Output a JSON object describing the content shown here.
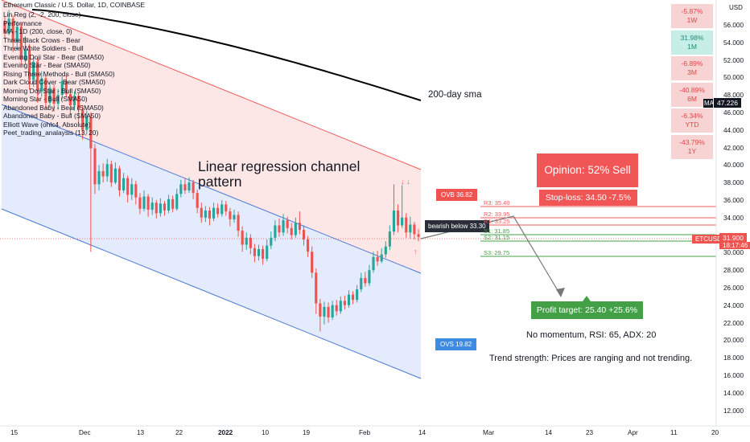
{
  "header": {
    "title": "Ethereum Classic / U.S. Dollar, 1D, COINBASE",
    "indicators": [
      "Lin Reg (2, -2, 200, close)",
      "Performance",
      "MA - 1D (200, close, 0)",
      "Three Black Crows - Bear",
      "Three White Soldiers - Bull",
      "Evening Doji Star - Bear (SMA50)",
      "Evening Star - Bear (SMA50)",
      "Rising Three Methods - Bull (SMA50)",
      "Dark Cloud Cover - Bear (SMA50)",
      "Morning Doji Star - Bull (SMA50)",
      "Morning Star - Bull (SMA50)",
      "Abandoned Baby - Bear (SMA50)",
      "Abandoned Baby - Bull (SMA50)",
      "Elliott Wave (ohlc4, Absolute)",
      "Peet_trading_analaysis (13, 20)"
    ]
  },
  "performance": [
    {
      "value": "-5.87%",
      "period": "1W",
      "color": "#f7d3d3",
      "text": "#e04646"
    },
    {
      "value": "31.98%",
      "period": "1M",
      "color": "#c6ede6",
      "text": "#15917a"
    },
    {
      "value": "-6.89%",
      "period": "3M",
      "color": "#f7d3d3",
      "text": "#e04646"
    },
    {
      "value": "-40.89%",
      "period": "6M",
      "color": "#f7d3d3",
      "text": "#e04646"
    },
    {
      "value": "-6.34%",
      "period": "YTD",
      "color": "#f7d3d3",
      "text": "#e04646"
    },
    {
      "value": "-43.79%",
      "period": "1Y",
      "color": "#f7d3d3",
      "text": "#e04646"
    }
  ],
  "chart_data": {
    "type": "candlestick",
    "yticks": [
      "56.000",
      "54.000",
      "52.000",
      "50.000",
      "48.000",
      "46.000",
      "44.000",
      "42.000",
      "40.000",
      "38.000",
      "36.000",
      "34.000",
      "32.000",
      "30.000",
      "28.000",
      "26.000",
      "24.000",
      "22.000",
      "20.000",
      "18.000",
      "16.000",
      "14.000",
      "12.000"
    ],
    "xticks": [
      "15",
      "Dec",
      "13",
      "22",
      "2022",
      "10",
      "19",
      "Feb",
      "14",
      "Mar",
      "14",
      "23",
      "Apr",
      "11",
      "20"
    ],
    "currency_label": "USD",
    "price_label": "ETCUSD",
    "price_value": "31.900",
    "countdown": "18:17:46",
    "ma_label": "MA",
    "ma_value": "47.226",
    "sma_note": "200-day sma",
    "channel_note": "Linear regression channel pattern",
    "ovb_label": "OVB 36.82",
    "ovs_label": "OVS 19.82",
    "bearish_note": "bearish below 33.30",
    "levels": [
      {
        "label": "R3: 35.40",
        "value": 35.4,
        "color": "#f05b5b"
      },
      {
        "label": "R2: 33.95",
        "value": 33.95,
        "color": "#f05b5b"
      },
      {
        "label": "R1: 33.25",
        "value": 33.25,
        "color": "#f05b5b"
      },
      {
        "label": "S1: 31.85",
        "value": 31.85,
        "color": "#43a047"
      },
      {
        "label": "S2: 31.15",
        "value": 31.15,
        "color": "#43a047"
      },
      {
        "label": "S3: 29.75",
        "value": 29.75,
        "color": "#43a047"
      }
    ],
    "current_price": 31.9,
    "ma200": 47.226,
    "candles": [
      [
        56.5,
        55.2,
        57.0,
        54.5
      ],
      [
        55.2,
        56.8,
        57.8,
        54.9
      ],
      [
        56.8,
        54.1,
        57.2,
        53.0
      ],
      [
        54.1,
        55.9,
        56.5,
        53.2
      ],
      [
        55.9,
        52.1,
        56.3,
        51.2
      ],
      [
        52.1,
        53.3,
        54.8,
        51.5
      ],
      [
        53.3,
        49.8,
        53.9,
        48.7
      ],
      [
        49.8,
        51.9,
        52.4,
        49.0
      ],
      [
        51.9,
        48.5,
        52.3,
        47.2
      ],
      [
        48.5,
        50.0,
        50.8,
        47.9
      ],
      [
        50.0,
        47.2,
        50.3,
        46.5
      ],
      [
        47.2,
        48.9,
        49.5,
        46.8
      ],
      [
        48.9,
        47.1,
        49.3,
        46.2
      ],
      [
        47.1,
        48.1,
        48.8,
        46.4
      ],
      [
        48.1,
        49.7,
        50.2,
        47.6
      ],
      [
        49.7,
        48.2,
        50.4,
        47.8
      ],
      [
        48.2,
        46.9,
        48.7,
        45.8
      ],
      [
        46.9,
        48.0,
        48.5,
        46.3
      ],
      [
        48.0,
        46.4,
        48.3,
        44.9
      ],
      [
        46.4,
        44.1,
        46.9,
        43.0
      ],
      [
        44.1,
        45.6,
        46.3,
        43.6
      ],
      [
        45.6,
        42.0,
        46.1,
        30.2
      ],
      [
        42.0,
        37.9,
        42.5,
        36.8
      ],
      [
        37.9,
        39.4,
        40.1,
        37.2
      ],
      [
        39.4,
        38.8,
        40.3,
        38.1
      ],
      [
        38.8,
        40.2,
        40.8,
        38.2
      ],
      [
        40.2,
        38.1,
        40.6,
        37.6
      ],
      [
        38.1,
        39.7,
        40.4,
        37.9
      ],
      [
        39.7,
        37.2,
        40.0,
        36.5
      ],
      [
        37.2,
        38.6,
        39.2,
        36.9
      ],
      [
        38.6,
        36.7,
        38.9,
        35.8
      ],
      [
        36.7,
        37.9,
        38.6,
        36.1
      ],
      [
        37.9,
        36.4,
        38.3,
        35.6
      ],
      [
        36.4,
        35.1,
        36.9,
        34.5
      ],
      [
        35.1,
        36.5,
        37.2,
        34.8
      ],
      [
        36.5,
        35.0,
        36.8,
        34.2
      ],
      [
        35.0,
        35.8,
        36.4,
        34.4
      ],
      [
        35.8,
        34.6,
        36.1,
        34.0
      ],
      [
        34.6,
        35.7,
        36.3,
        34.2
      ],
      [
        35.7,
        34.9,
        36.0,
        34.3
      ],
      [
        34.9,
        36.2,
        36.7,
        34.6
      ],
      [
        36.2,
        35.1,
        36.6,
        34.7
      ],
      [
        35.1,
        36.8,
        37.4,
        34.9
      ],
      [
        36.8,
        37.9,
        38.4,
        36.4
      ],
      [
        37.9,
        37.2,
        38.6,
        36.8
      ],
      [
        37.2,
        38.1,
        38.7,
        36.9
      ],
      [
        38.1,
        36.9,
        38.4,
        36.2
      ],
      [
        36.9,
        35.2,
        37.3,
        34.6
      ],
      [
        35.2,
        34.1,
        35.8,
        33.5
      ],
      [
        34.1,
        34.9,
        35.4,
        33.6
      ],
      [
        34.9,
        34.0,
        35.3,
        33.2
      ],
      [
        34.0,
        35.2,
        35.8,
        33.7
      ],
      [
        35.2,
        34.5,
        35.7,
        34.1
      ],
      [
        34.5,
        35.6,
        36.1,
        34.2
      ],
      [
        35.6,
        34.8,
        36.0,
        34.3
      ],
      [
        34.8,
        33.9,
        35.2,
        33.1
      ],
      [
        33.9,
        34.4,
        35.0,
        33.5
      ],
      [
        34.4,
        32.6,
        34.8,
        31.9
      ],
      [
        32.6,
        31.0,
        33.1,
        30.2
      ],
      [
        31.0,
        31.8,
        32.4,
        30.4
      ],
      [
        31.8,
        30.6,
        32.2,
        29.9
      ],
      [
        30.6,
        29.7,
        31.1,
        29.0
      ],
      [
        29.7,
        30.5,
        31.0,
        29.2
      ],
      [
        30.5,
        29.4,
        30.9,
        28.7
      ],
      [
        29.4,
        30.9,
        31.6,
        29.1
      ],
      [
        30.9,
        31.8,
        32.5,
        30.5
      ],
      [
        31.8,
        33.2,
        33.8,
        31.4
      ],
      [
        33.2,
        32.4,
        34.0,
        31.9
      ],
      [
        32.4,
        33.8,
        34.5,
        32.0
      ],
      [
        33.8,
        32.9,
        34.2,
        32.3
      ],
      [
        32.9,
        32.1,
        33.5,
        31.6
      ],
      [
        32.1,
        33.5,
        34.1,
        31.8
      ],
      [
        33.5,
        32.7,
        34.8,
        32.2
      ],
      [
        32.7,
        31.6,
        33.2,
        30.9
      ],
      [
        31.6,
        30.2,
        32.0,
        29.6
      ],
      [
        30.2,
        27.8,
        30.8,
        27.2
      ],
      [
        27.8,
        24.3,
        28.3,
        23.1
      ],
      [
        24.3,
        22.8,
        24.8,
        21.1
      ],
      [
        22.8,
        23.9,
        24.5,
        21.9
      ],
      [
        23.9,
        22.7,
        24.4,
        22.1
      ],
      [
        22.7,
        24.1,
        24.6,
        22.4
      ],
      [
        24.1,
        23.4,
        24.7,
        22.9
      ],
      [
        23.4,
        24.6,
        25.1,
        23.1
      ],
      [
        24.6,
        24.1,
        25.2,
        23.6
      ],
      [
        24.1,
        25.3,
        25.8,
        23.8
      ],
      [
        25.3,
        24.7,
        25.7,
        24.2
      ],
      [
        24.7,
        25.9,
        26.4,
        24.4
      ],
      [
        25.9,
        27.2,
        27.8,
        25.6
      ],
      [
        27.2,
        26.6,
        27.9,
        26.2
      ],
      [
        26.6,
        28.1,
        28.7,
        26.3
      ],
      [
        28.1,
        29.6,
        30.2,
        27.8
      ],
      [
        29.6,
        29.1,
        30.3,
        28.6
      ],
      [
        29.1,
        29.9,
        30.6,
        28.9
      ],
      [
        29.9,
        30.8,
        31.4,
        29.5
      ],
      [
        30.8,
        32.5,
        33.2,
        30.4
      ],
      [
        32.5,
        34.9,
        37.9,
        32.1
      ],
      [
        34.9,
        33.2,
        35.6,
        32.4
      ],
      [
        33.2,
        34.1,
        37.8,
        32.9
      ],
      [
        34.1,
        32.4,
        34.6,
        31.8
      ],
      [
        32.4,
        33.3,
        34.2,
        31.7
      ],
      [
        33.3,
        32.2,
        33.6,
        31.6
      ],
      [
        32.2,
        31.9,
        32.8,
        31.4
      ]
    ]
  },
  "analysis": {
    "opinion": "Opinion: 52% Sell",
    "stop_loss": "Stop-loss: 34.50 -7.5%",
    "profit_target": "Profit target: 25.40 +25.6%",
    "momentum": "No momentum, RSI: 65, ADX: 20",
    "trend": "Trend strength: Prices are ranging and not trending."
  },
  "colors": {
    "bull": "#26a69a",
    "bear": "#ef5350",
    "upper_fill": "#fde0e0",
    "lower_fill": "#dde6fb",
    "upper_line": "#f05b5b",
    "lower_line": "#4a78d4",
    "opinion_bg": "#f05656",
    "profit_bg": "#43a047",
    "ovs_bg": "#3d8be3",
    "ma_line": "#000000"
  }
}
